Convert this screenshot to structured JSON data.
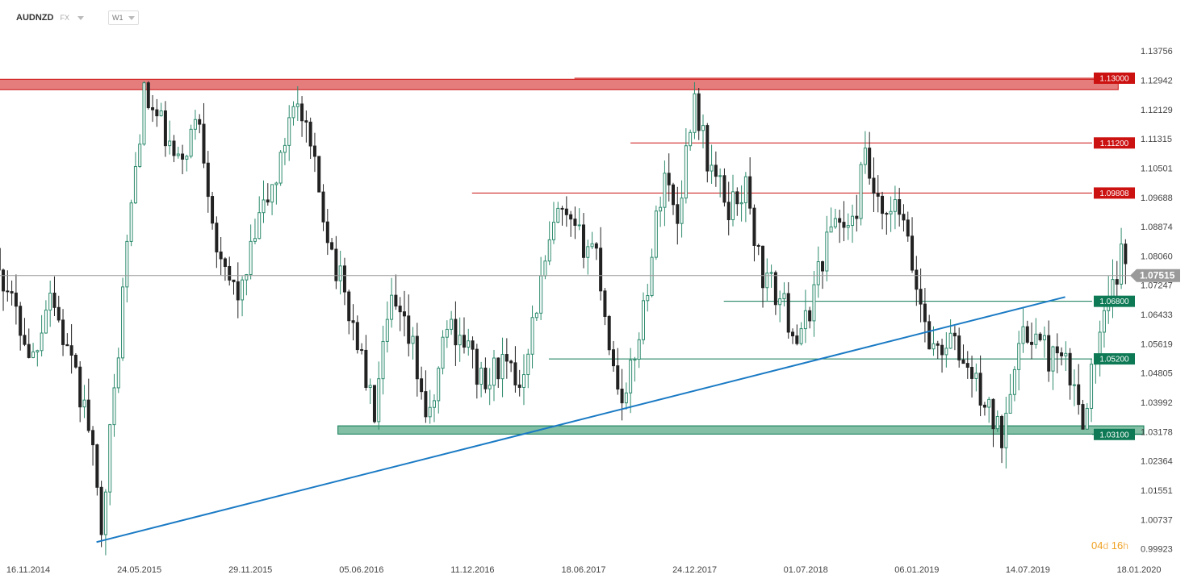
{
  "header": {
    "symbol": "AUDNZD",
    "market": "FX",
    "timeframe": "W1"
  },
  "countdown": {
    "days": "04",
    "days_unit": "d",
    "hours": "16",
    "hours_unit": "h"
  },
  "colors": {
    "bull": "#2e8b6e",
    "bear": "#222222",
    "resistance": "#cc1111",
    "support": "#0e7a55",
    "trendline": "#1a7ac4",
    "current_price": "#999999"
  },
  "chart_data": {
    "type": "candlestick",
    "ylim": [
      0.996,
      1.145
    ],
    "y_ticks": [
      "1.13756",
      "1.12942",
      "1.12129",
      "1.11315",
      "1.10501",
      "1.09688",
      "1.08874",
      "1.08060",
      "1.07247",
      "1.06433",
      "1.05619",
      "1.04805",
      "1.03992",
      "1.03178",
      "1.02364",
      "1.01551",
      "1.00737",
      "0.99923"
    ],
    "x_labels": [
      "16.11.2014",
      "24.05.2015",
      "29.11.2015",
      "05.06.2016",
      "11.12.2016",
      "18.06.2017",
      "24.12.2017",
      "01.07.2018",
      "06.01.2019",
      "14.07.2019",
      "18.01.2020"
    ],
    "price_tags": [
      {
        "price": 1.13,
        "label": "1.13000",
        "kind": "resistance"
      },
      {
        "price": 1.112,
        "label": "1.11200",
        "kind": "resistance"
      },
      {
        "price": 1.09808,
        "label": "1.09808",
        "kind": "resistance"
      },
      {
        "price": 1.068,
        "label": "1.06800",
        "kind": "support"
      },
      {
        "price": 1.052,
        "label": "1.05200",
        "kind": "support"
      },
      {
        "price": 1.031,
        "label": "1.03100",
        "kind": "support"
      }
    ],
    "current_price": {
      "price": 1.07515,
      "label": "1.07515"
    },
    "zones": [
      {
        "kind": "resistance",
        "from_date": "2014-08-01",
        "to_date": "2019-10-10",
        "top": 1.1297,
        "bottom": 1.1268
      },
      {
        "kind": "support",
        "from_date": "2016-04-08",
        "to_date": "2019-11-21",
        "top": 1.0334,
        "bottom": 1.0311
      }
    ],
    "levels": [
      {
        "price": 1.13,
        "from_date": "2017-05-01",
        "kind": "resistance"
      },
      {
        "price": 1.112,
        "from_date": "2017-08-01",
        "kind": "resistance"
      },
      {
        "price": 1.09808,
        "from_date": "2016-11-14",
        "kind": "resistance"
      },
      {
        "price": 1.068,
        "from_date": "2018-01-01",
        "kind": "support"
      },
      {
        "price": 1.052,
        "from_date": "2017-03-20",
        "kind": "support"
      }
    ],
    "trendline": {
      "from_date": "2015-03-09",
      "from_price": 1.0011,
      "to_date": "2019-07-15",
      "to_price": 1.0692
    },
    "anchors": [
      {
        "date": "2014-08-05",
        "price": 1.093
      },
      {
        "date": "2014-09-15",
        "price": 1.085
      },
      {
        "date": "2014-10-20",
        "price": 1.068
      },
      {
        "date": "2014-11-24",
        "price": 1.052
      },
      {
        "date": "2014-12-22",
        "price": 1.072
      },
      {
        "date": "2015-01-26",
        "price": 1.05
      },
      {
        "date": "2015-02-23",
        "price": 1.035
      },
      {
        "date": "2015-03-16",
        "price": 1.006
      },
      {
        "date": "2015-04-06",
        "price": 1.04
      },
      {
        "date": "2015-04-27",
        "price": 1.082
      },
      {
        "date": "2015-05-25",
        "price": 1.125
      },
      {
        "date": "2015-06-22",
        "price": 1.117
      },
      {
        "date": "2015-07-20",
        "price": 1.105
      },
      {
        "date": "2015-08-24",
        "price": 1.12
      },
      {
        "date": "2015-09-28",
        "price": 1.076
      },
      {
        "date": "2015-11-02",
        "price": 1.07
      },
      {
        "date": "2015-11-30",
        "price": 1.09
      },
      {
        "date": "2016-01-04",
        "price": 1.105
      },
      {
        "date": "2016-01-25",
        "price": 1.126
      },
      {
        "date": "2016-02-22",
        "price": 1.11
      },
      {
        "date": "2016-04-04",
        "price": 1.078
      },
      {
        "date": "2016-05-09",
        "price": 1.058
      },
      {
        "date": "2016-06-06",
        "price": 1.036
      },
      {
        "date": "2016-07-04",
        "price": 1.067
      },
      {
        "date": "2016-08-08",
        "price": 1.055
      },
      {
        "date": "2016-09-05",
        "price": 1.033
      },
      {
        "date": "2016-10-03",
        "price": 1.062
      },
      {
        "date": "2016-10-31",
        "price": 1.058
      },
      {
        "date": "2016-12-05",
        "price": 1.043
      },
      {
        "date": "2016-12-26",
        "price": 1.051
      },
      {
        "date": "2017-01-30",
        "price": 1.045
      },
      {
        "date": "2017-03-06",
        "price": 1.072
      },
      {
        "date": "2017-04-03",
        "price": 1.092
      },
      {
        "date": "2017-05-08",
        "price": 1.085
      },
      {
        "date": "2017-06-05",
        "price": 1.083
      },
      {
        "date": "2017-07-03",
        "price": 1.05
      },
      {
        "date": "2017-07-24",
        "price": 1.04
      },
      {
        "date": "2017-08-28",
        "price": 1.072
      },
      {
        "date": "2017-09-25",
        "price": 1.105
      },
      {
        "date": "2017-10-16",
        "price": 1.09
      },
      {
        "date": "2017-11-13",
        "price": 1.126
      },
      {
        "date": "2017-12-04",
        "price": 1.108
      },
      {
        "date": "2018-01-08",
        "price": 1.094
      },
      {
        "date": "2018-02-05",
        "price": 1.1
      },
      {
        "date": "2018-03-05",
        "price": 1.075
      },
      {
        "date": "2018-04-02",
        "price": 1.069
      },
      {
        "date": "2018-05-07",
        "price": 1.056
      },
      {
        "date": "2018-06-04",
        "price": 1.076
      },
      {
        "date": "2018-07-02",
        "price": 1.092
      },
      {
        "date": "2018-07-30",
        "price": 1.087
      },
      {
        "date": "2018-08-20",
        "price": 1.108
      },
      {
        "date": "2018-09-17",
        "price": 1.089
      },
      {
        "date": "2018-10-15",
        "price": 1.094
      },
      {
        "date": "2018-11-12",
        "price": 1.073
      },
      {
        "date": "2018-12-10",
        "price": 1.054
      },
      {
        "date": "2019-01-07",
        "price": 1.057
      },
      {
        "date": "2019-02-04",
        "price": 1.05
      },
      {
        "date": "2019-03-04",
        "price": 1.04
      },
      {
        "date": "2019-04-01",
        "price": 1.03
      },
      {
        "date": "2019-04-22",
        "price": 1.053
      },
      {
        "date": "2019-05-20",
        "price": 1.06
      },
      {
        "date": "2019-06-17",
        "price": 1.053
      },
      {
        "date": "2019-07-15",
        "price": 1.05
      },
      {
        "date": "2019-08-12",
        "price": 1.036
      },
      {
        "date": "2019-09-02",
        "price": 1.052
      },
      {
        "date": "2019-09-23",
        "price": 1.066
      },
      {
        "date": "2019-10-14",
        "price": 1.08
      },
      {
        "date": "2019-10-28",
        "price": 1.0752
      }
    ]
  }
}
